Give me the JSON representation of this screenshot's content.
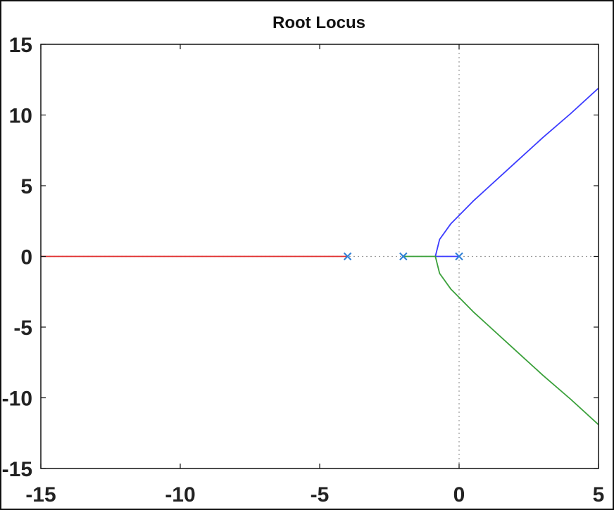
{
  "chart_data": {
    "type": "line",
    "title": "Root Locus",
    "xlabel": "",
    "ylabel": "",
    "xlim": [
      -15,
      5
    ],
    "ylim": [
      -15,
      15
    ],
    "x_ticks": [
      -15,
      -10,
      -5,
      0,
      5
    ],
    "y_ticks": [
      15,
      10,
      5,
      0,
      -5,
      -10,
      -15
    ],
    "grid": "off",
    "reference_lines": [
      {
        "orientation": "vertical",
        "value": 0,
        "style": "dotted"
      },
      {
        "orientation": "horizontal",
        "value": 0,
        "style": "dotted"
      }
    ],
    "poles": [
      {
        "x": 0,
        "y": 0
      },
      {
        "x": -2,
        "y": 0
      },
      {
        "x": -4,
        "y": 0
      }
    ],
    "pole_color": "#2e7fd6",
    "series": [
      {
        "color": "#e03030",
        "x": [
          -4,
          -6,
          -8,
          -10,
          -12,
          -14,
          -15
        ],
        "y": [
          0,
          0,
          0,
          0,
          0,
          0,
          0
        ]
      },
      {
        "color": "#3b3bff",
        "x": [
          0,
          -0.4,
          -0.85,
          -0.7,
          -0.3,
          0,
          0.5,
          1,
          2,
          3,
          4,
          5
        ],
        "y": [
          0,
          0,
          0,
          1.2,
          2.3,
          2.9,
          3.9,
          4.8,
          6.6,
          8.4,
          10.1,
          11.9
        ],
        "tail_x": [
          5,
          5
        ],
        "tail_y": [
          11.9,
          11.9
        ]
      },
      {
        "color": "#3aa03a",
        "x": [
          -2,
          -1.6,
          -1.2,
          -0.85,
          -0.7,
          -0.3,
          0,
          0.5,
          1,
          2,
          3,
          4,
          5
        ],
        "y": [
          0,
          0,
          0,
          0,
          -1.2,
          -2.3,
          -2.9,
          -3.9,
          -4.8,
          -6.6,
          -8.4,
          -10.1,
          -11.9
        ]
      }
    ]
  }
}
